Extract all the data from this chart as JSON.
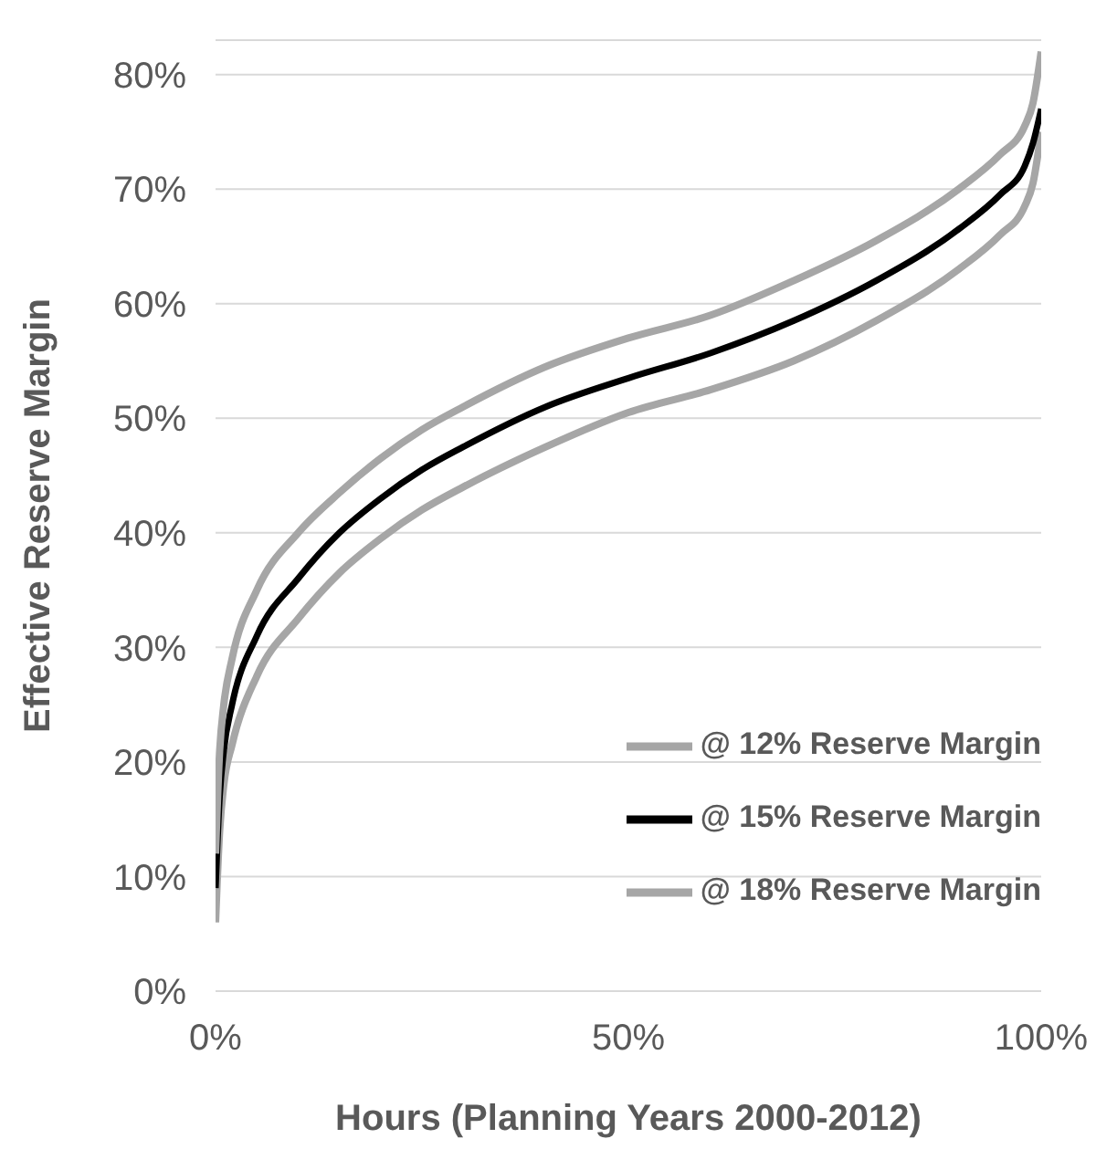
{
  "chart_data": {
    "type": "line",
    "xlabel": "Hours (Planning Years  2000-2012)",
    "ylabel": "Effective Reserve Margin",
    "x": [
      0,
      0.5,
      1,
      2,
      5,
      10,
      15,
      20,
      25,
      30,
      40,
      50,
      60,
      70,
      80,
      90,
      95,
      98,
      99,
      100
    ],
    "series": [
      {
        "name": "@ 12% Reserve Margin",
        "color": "#a6a6a6",
        "values": [
          6,
          14,
          18,
          21.5,
          27.5,
          32.5,
          36.5,
          39.5,
          42,
          44,
          47.5,
          50.5,
          52.5,
          55,
          58.5,
          63,
          66,
          68.5,
          70.5,
          75
        ]
      },
      {
        "name": "@ 15% Reserve Margin",
        "color": "#000000",
        "values": [
          9,
          17,
          21,
          25,
          31,
          36,
          40,
          43,
          45.5,
          47.5,
          51,
          53.5,
          55.7,
          58.5,
          62,
          66.5,
          69.5,
          72,
          74,
          77
        ]
      },
      {
        "name": "@ 18% Reserve Margin",
        "color": "#a6a6a6",
        "values": [
          12,
          21,
          25,
          29,
          35,
          40,
          43.5,
          46.5,
          49,
          51,
          54.5,
          57,
          59,
          62,
          65.5,
          70,
          73,
          75.5,
          77.5,
          82
        ]
      }
    ],
    "xlim": [
      0,
      100
    ],
    "xticks": [
      {
        "value": 0,
        "label": "0%"
      },
      {
        "value": 50,
        "label": "50%"
      },
      {
        "value": 100,
        "label": "100%"
      }
    ],
    "ylim": [
      0,
      83
    ],
    "yticks": [
      {
        "value": 0,
        "label": "0%"
      },
      {
        "value": 10,
        "label": "10%"
      },
      {
        "value": 20,
        "label": "20%"
      },
      {
        "value": 30,
        "label": "30%"
      },
      {
        "value": 40,
        "label": "40%"
      },
      {
        "value": 50,
        "label": "50%"
      },
      {
        "value": 60,
        "label": "60%"
      },
      {
        "value": 70,
        "label": "70%"
      },
      {
        "value": 80,
        "label": "80%"
      }
    ],
    "grid": "y",
    "legend": "bottom right",
    "marker": "none",
    "line_style": "solid"
  }
}
